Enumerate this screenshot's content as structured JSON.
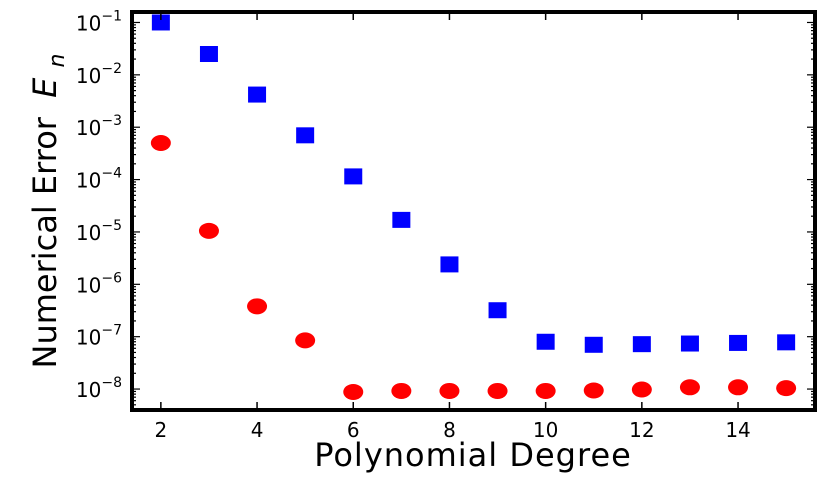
{
  "chart_data": {
    "type": "scatter",
    "title": "",
    "xlabel": "Polynomial Degree",
    "ylabel": "Numerical Error",
    "ylabel_symbol": "E",
    "ylabel_subscript": "n",
    "xlim": [
      1.4,
      15.6
    ],
    "ylim_log10": [
      -8.4,
      -0.8
    ],
    "y_scale": "log",
    "grid": false,
    "x_ticks": [
      2,
      4,
      6,
      8,
      10,
      12,
      14
    ],
    "y_ticks": [
      {
        "base": "10",
        "exp": "−1",
        "log10": -1
      },
      {
        "base": "10",
        "exp": "−2",
        "log10": -2
      },
      {
        "base": "10",
        "exp": "−3",
        "log10": -3
      },
      {
        "base": "10",
        "exp": "−4",
        "log10": -4
      },
      {
        "base": "10",
        "exp": "−5",
        "log10": -5
      },
      {
        "base": "10",
        "exp": "−6",
        "log10": -6
      },
      {
        "base": "10",
        "exp": "−7",
        "log10": -7
      },
      {
        "base": "10",
        "exp": "−8",
        "log10": -8
      }
    ],
    "series": [
      {
        "marker": "square",
        "color": "#0000ff",
        "x": [
          2,
          3,
          4,
          5,
          6,
          7,
          8,
          9,
          10,
          11,
          12,
          13,
          14,
          15
        ],
        "y": [
          0.1,
          0.025,
          0.0042,
          0.0007,
          0.000115,
          1.7e-05,
          2.4e-06,
          3.2e-07,
          8e-08,
          7e-08,
          7.2e-08,
          7.4e-08,
          7.6e-08,
          7.8e-08
        ]
      },
      {
        "marker": "circle",
        "color": "#ff0000",
        "x": [
          2,
          3,
          4,
          5,
          6,
          7,
          8,
          9,
          10,
          11,
          12,
          13,
          14,
          15
        ],
        "y": [
          0.0005,
          1.05e-05,
          3.8e-07,
          8.5e-08,
          8.8e-09,
          9.2e-09,
          9.2e-09,
          9.2e-09,
          9.2e-09,
          9.4e-09,
          9.8e-09,
          1.08e-08,
          1.08e-08,
          1.04e-08
        ]
      }
    ]
  }
}
